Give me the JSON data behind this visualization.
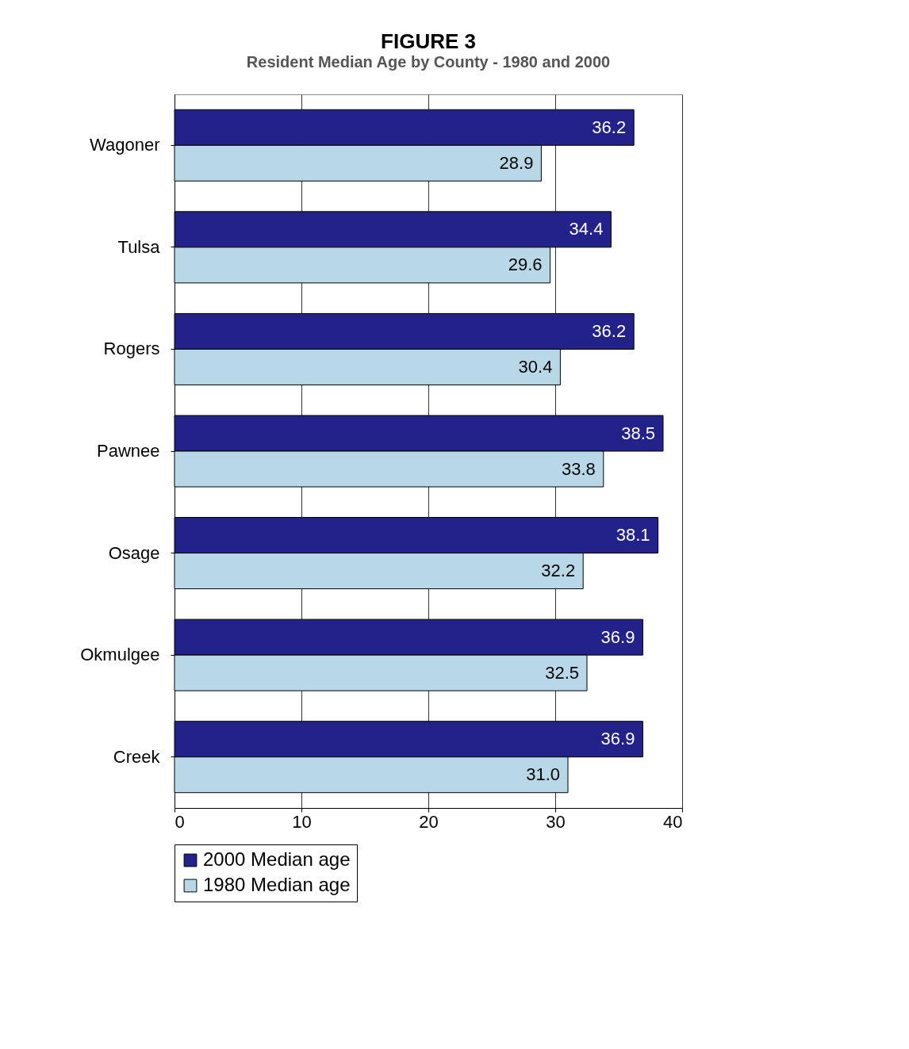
{
  "chart_data": {
    "type": "bar",
    "title": "FIGURE 3",
    "subtitle": "Resident Median Age by County - 1980 and 2000",
    "orientation": "horizontal",
    "categories": [
      "Wagoner",
      "Tulsa",
      "Rogers",
      "Pawnee",
      "Osage",
      "Okmulgee",
      "Creek"
    ],
    "series": [
      {
        "name": "2000 Median age",
        "color": "#22228a",
        "values": [
          36.2,
          34.4,
          36.2,
          38.5,
          38.1,
          36.9,
          36.9
        ],
        "value_labels": [
          "36.2",
          "34.4",
          "36.2",
          "38.5",
          "38.1",
          "36.9",
          "36.9"
        ]
      },
      {
        "name": "1980 Median age",
        "color": "#b8d8e8",
        "values": [
          28.9,
          29.6,
          30.4,
          33.8,
          32.2,
          32.5,
          31.0
        ],
        "value_labels": [
          "28.9",
          "29.6",
          "30.4",
          "33.8",
          "32.2",
          "32.5",
          "31.0"
        ]
      }
    ],
    "xlim": [
      0,
      40
    ],
    "xticks": [
      0,
      10,
      20,
      30,
      40
    ],
    "grid": "x",
    "legend": "bottom"
  }
}
